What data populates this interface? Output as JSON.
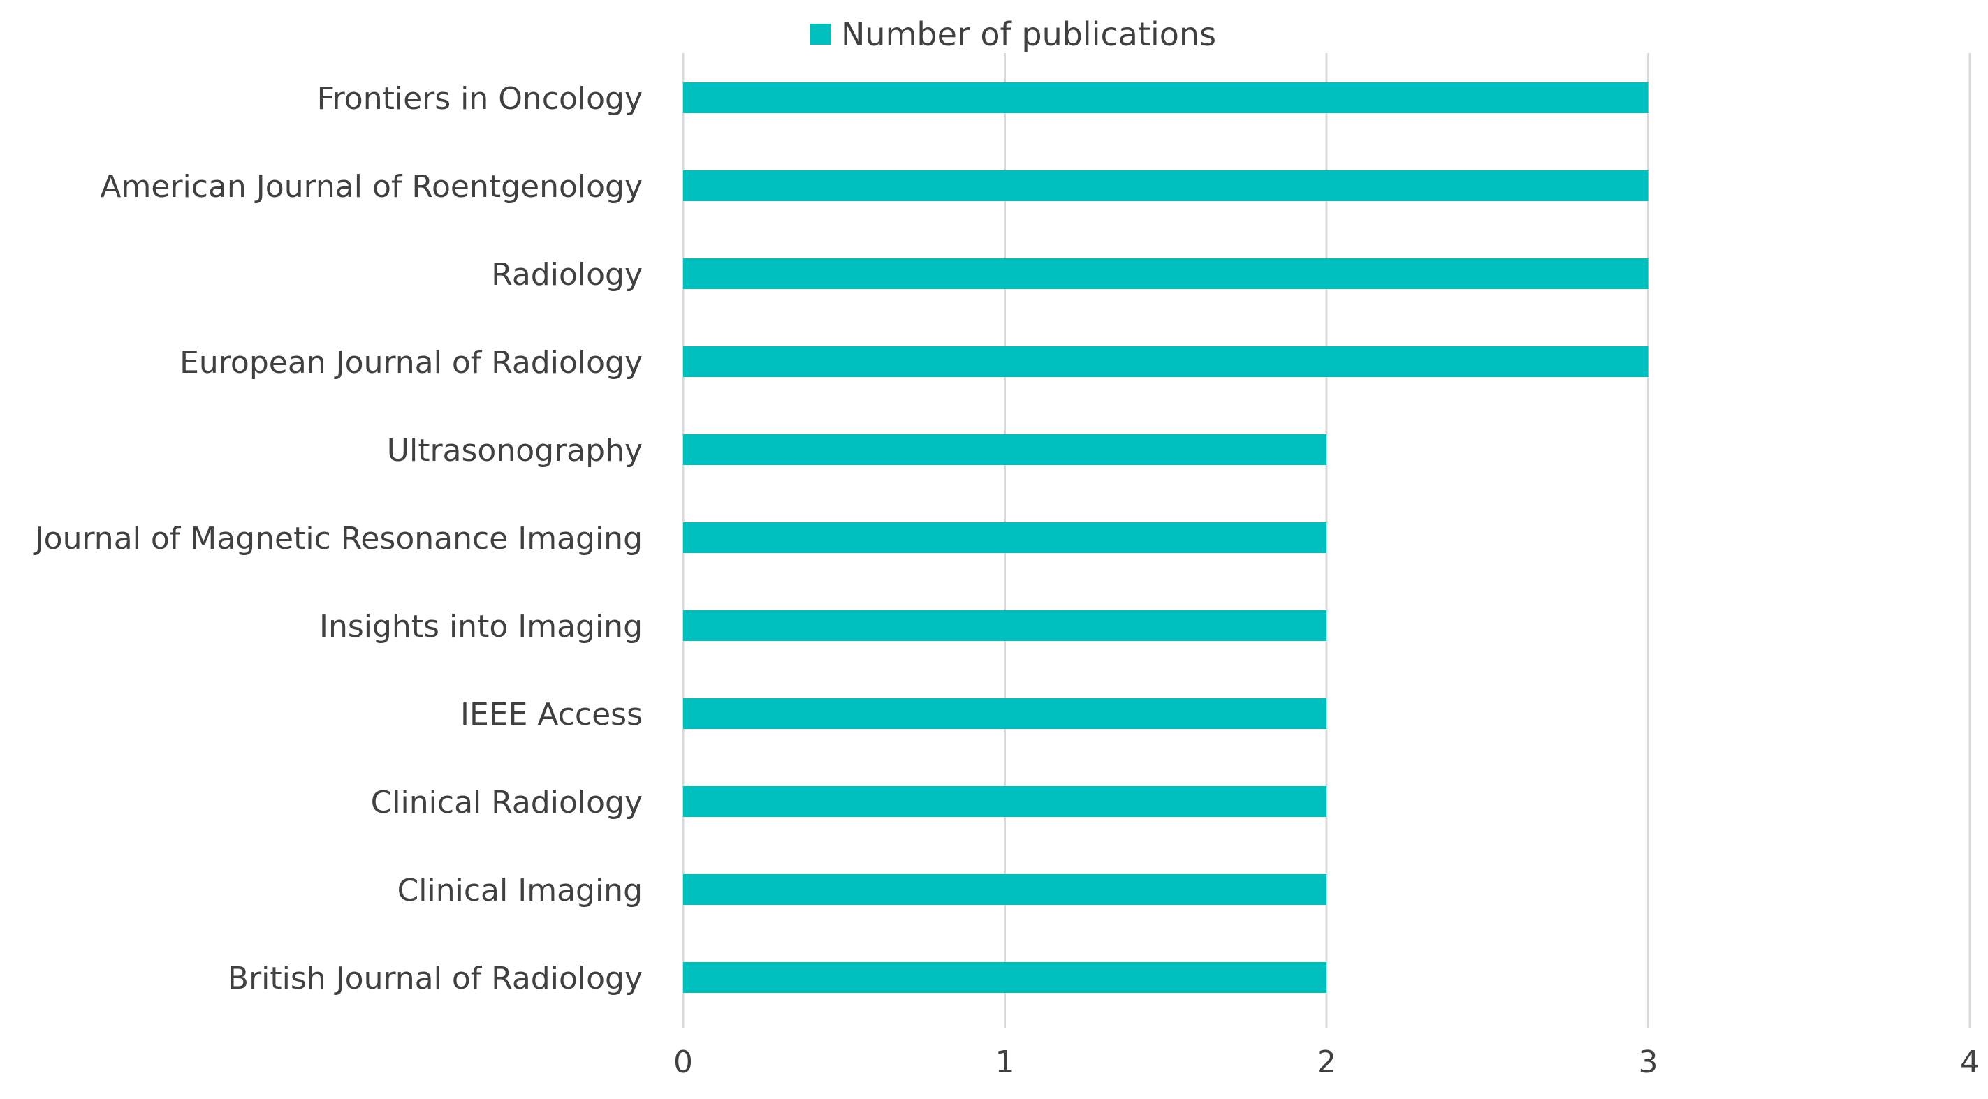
{
  "chart_data": {
    "type": "bar",
    "orientation": "horizontal",
    "categories": [
      "Frontiers in Oncology",
      "American Journal of Roentgenology",
      "Radiology",
      "European Journal of Radiology",
      "Ultrasonography",
      "Journal of Magnetic Resonance Imaging",
      "Insights into Imaging",
      "IEEE Access",
      "Clinical Radiology",
      "Clinical Imaging",
      "British Journal of Radiology"
    ],
    "series": [
      {
        "name": "Number of publications",
        "values": [
          3,
          3,
          3,
          3,
          2,
          2,
          2,
          2,
          2,
          2,
          2
        ],
        "color": "#00BFBF"
      }
    ],
    "xlim": [
      0,
      4
    ],
    "x_ticks": [
      "0",
      "1",
      "2",
      "3",
      "4"
    ],
    "grid": "vertical",
    "legend_position": "top"
  }
}
